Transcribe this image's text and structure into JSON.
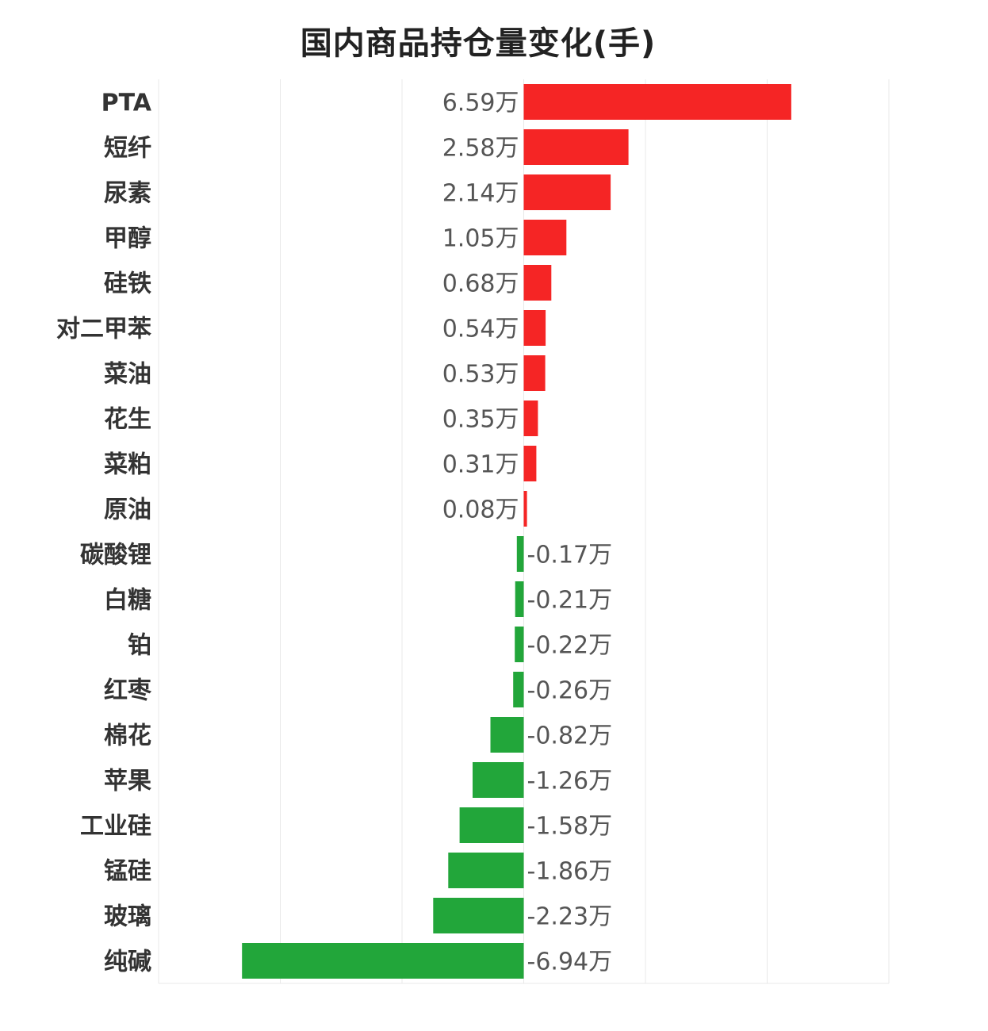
{
  "chart_data": {
    "type": "bar",
    "orientation": "horizontal",
    "title": "国内商品持仓量变化(手)",
    "unit": "万",
    "categories": [
      "PTA",
      "短纤",
      "尿素",
      "甲醇",
      "硅铁",
      "对二甲苯",
      "菜油",
      "花生",
      "菜粕",
      "原油",
      "碳酸锂",
      "白糖",
      "铂",
      "红枣",
      "棉花",
      "苹果",
      "工业硅",
      "锰硅",
      "玻璃",
      "纯碱"
    ],
    "values": [
      6.59,
      2.58,
      2.14,
      1.05,
      0.68,
      0.54,
      0.53,
      0.35,
      0.31,
      0.08,
      -0.17,
      -0.21,
      -0.22,
      -0.26,
      -0.82,
      -1.26,
      -1.58,
      -1.86,
      -2.23,
      -6.94
    ],
    "value_labels": [
      "6.59万",
      "2.58万",
      "2.14万",
      "1.05万",
      "0.68万",
      "0.54万",
      "0.53万",
      "0.35万",
      "0.31万",
      "0.08万",
      "-0.17万",
      "-0.21万",
      "-0.22万",
      "-0.26万",
      "-0.82万",
      "-1.26万",
      "-1.58万",
      "-1.86万",
      "-2.23万",
      "-6.94万"
    ],
    "xlim": [
      -9,
      9
    ],
    "grid": true,
    "colors": {
      "positive": "#f52525",
      "negative": "#22a63a"
    }
  }
}
